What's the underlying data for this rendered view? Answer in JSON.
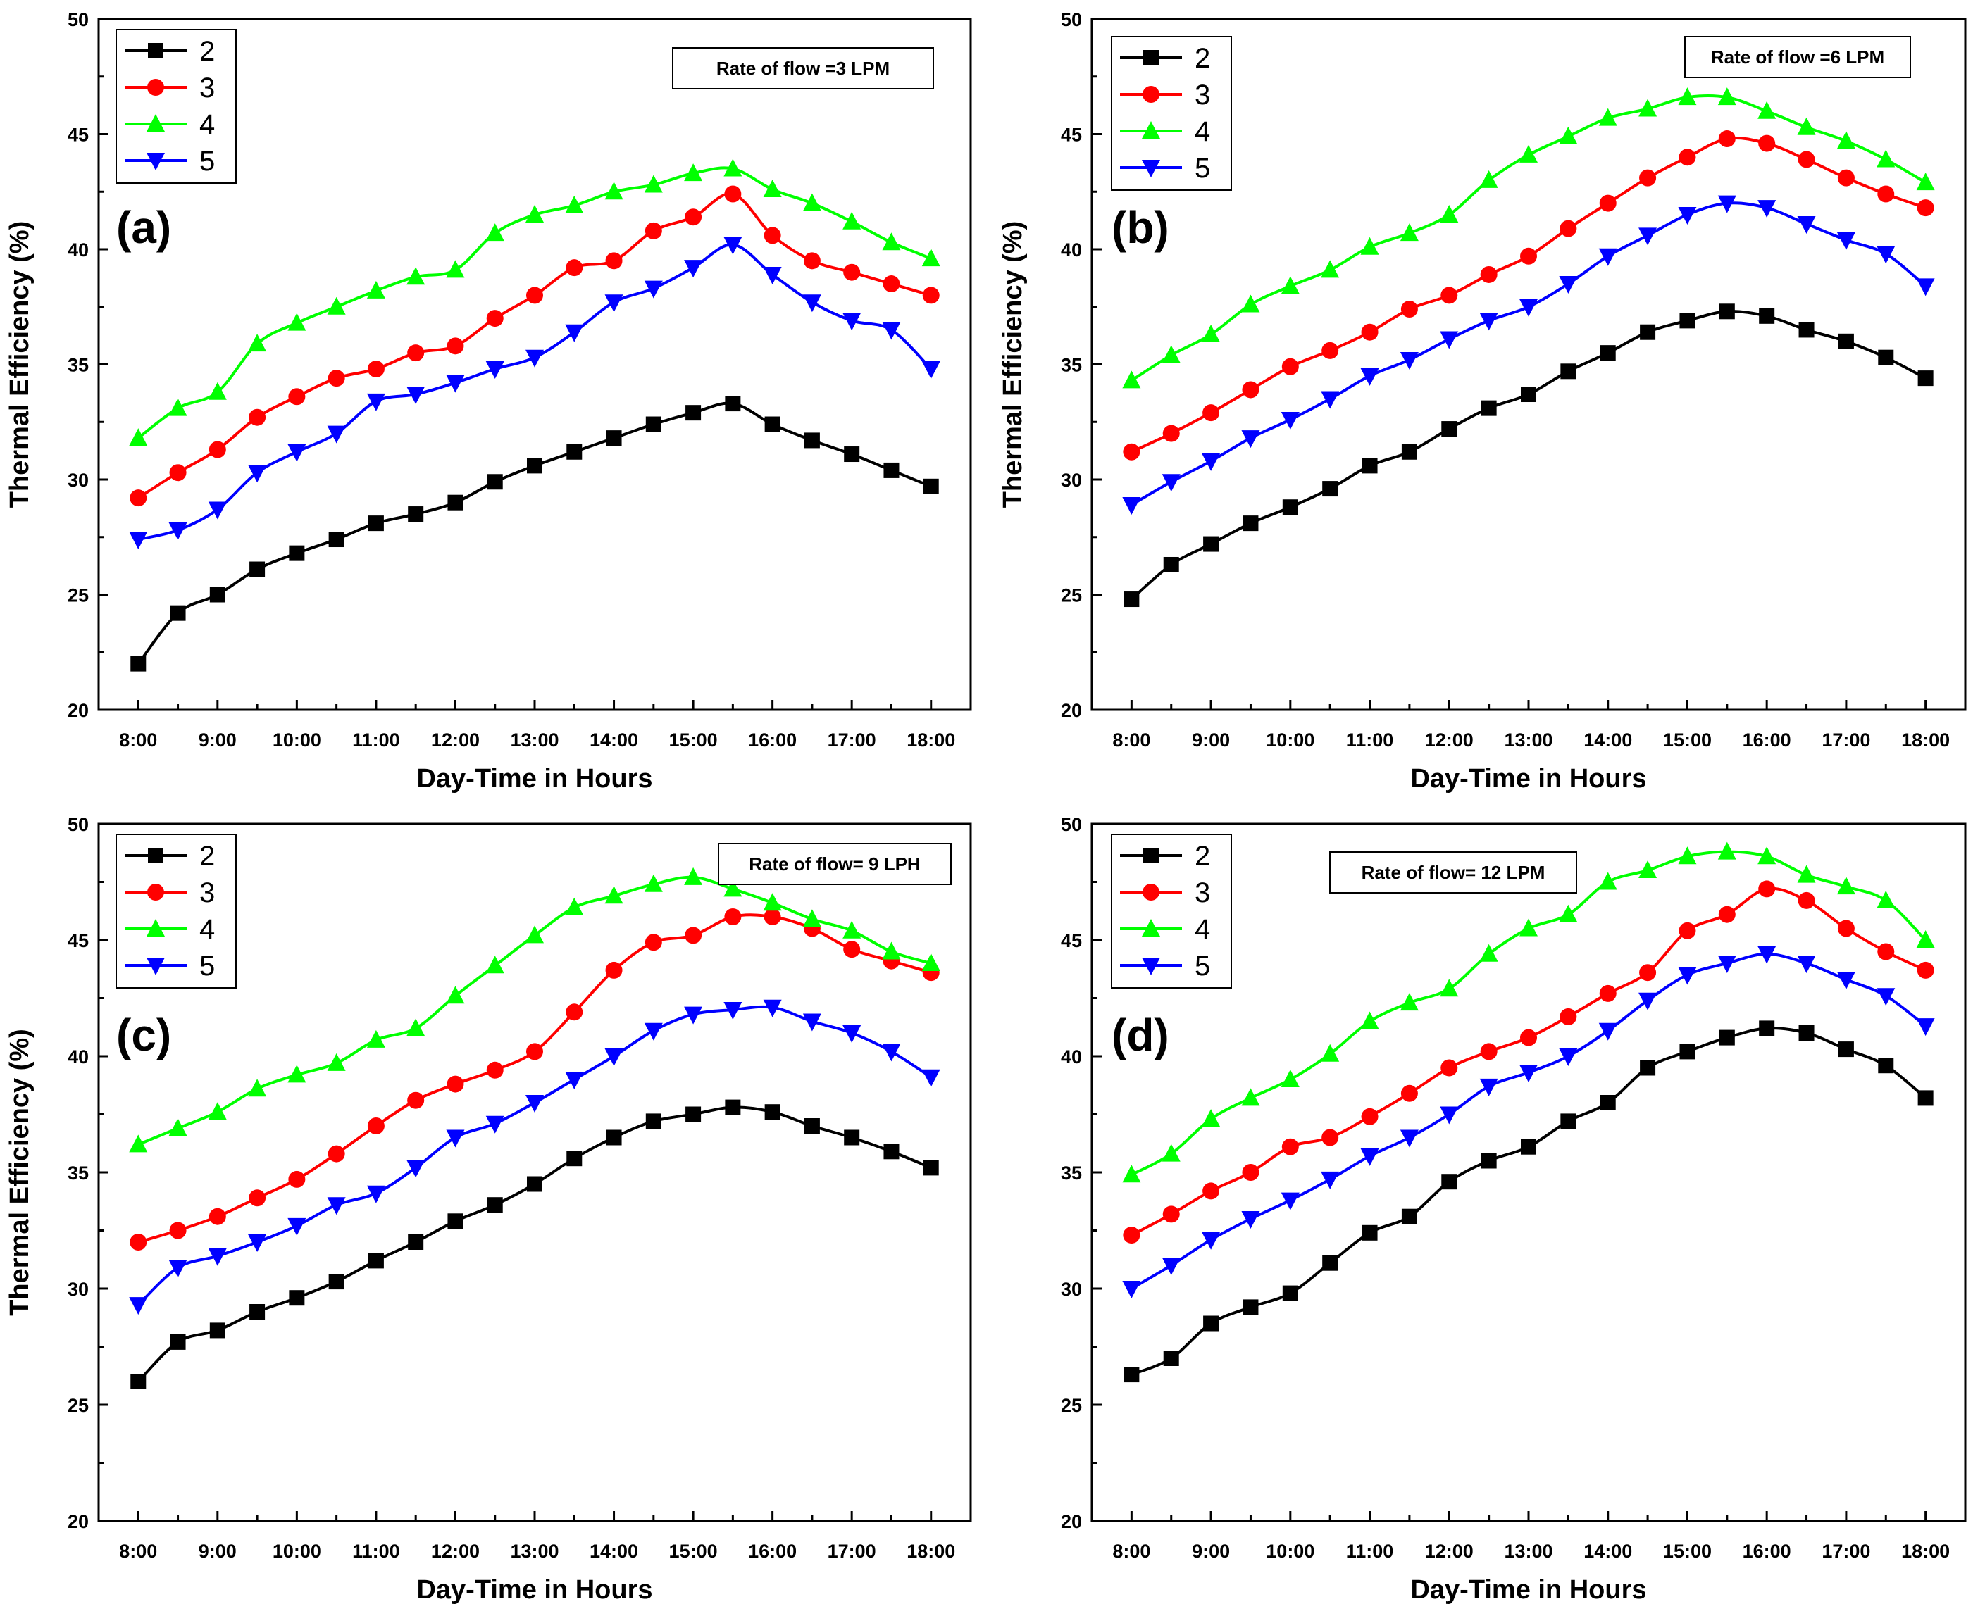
{
  "chart_data": [
    {
      "type": "line",
      "panel_label": "(a)",
      "flow_label": "Rate of flow =3 LPM",
      "xlabel": "Day-Time in Hours",
      "ylabel": "Thermal Efficiency (%)",
      "ylim": [
        20,
        50
      ],
      "yticks": [
        "20",
        "25",
        "30",
        "35",
        "40",
        "45",
        "50"
      ],
      "xtick_labels": [
        "8:00",
        "9:00",
        "10:00",
        "11:00",
        "12:00",
        "13:00",
        "14:00",
        "15:00",
        "16:00",
        "17:00",
        "18:00"
      ],
      "x": [
        8,
        8.5,
        9,
        9.5,
        10,
        10.5,
        11,
        11.5,
        12,
        12.5,
        13,
        13.5,
        14,
        14.5,
        15,
        15.5,
        16,
        16.5,
        17,
        17.5,
        18
      ],
      "legend_position": "top-left",
      "series": [
        {
          "name": "2",
          "color": "#000000",
          "marker": "square",
          "values": [
            22.0,
            24.2,
            25.0,
            26.1,
            26.8,
            27.4,
            28.1,
            28.5,
            29.0,
            29.9,
            30.6,
            31.2,
            31.8,
            32.4,
            32.9,
            33.3,
            32.4,
            31.7,
            31.1,
            30.4,
            29.7
          ]
        },
        {
          "name": "3",
          "color": "#ff0000",
          "marker": "circle",
          "values": [
            29.2,
            30.3,
            31.3,
            32.7,
            33.6,
            34.4,
            34.8,
            35.5,
            35.8,
            37.0,
            38.0,
            39.2,
            39.5,
            40.8,
            41.4,
            42.4,
            40.6,
            39.5,
            39.0,
            38.5,
            38.0
          ]
        },
        {
          "name": "4",
          "color": "#00ff00",
          "marker": "triangle-up",
          "values": [
            31.8,
            33.1,
            33.8,
            35.9,
            36.8,
            37.5,
            38.2,
            38.8,
            39.1,
            40.7,
            41.5,
            41.9,
            42.5,
            42.8,
            43.3,
            43.5,
            42.6,
            42.0,
            41.2,
            40.3,
            39.6
          ]
        },
        {
          "name": "5",
          "color": "#0000ff",
          "marker": "triangle-down",
          "values": [
            27.4,
            27.8,
            28.7,
            30.3,
            31.2,
            32.0,
            33.4,
            33.7,
            34.2,
            34.8,
            35.3,
            36.4,
            37.7,
            38.3,
            39.2,
            40.2,
            38.9,
            37.7,
            36.9,
            36.5,
            34.8
          ]
        }
      ]
    },
    {
      "type": "line",
      "panel_label": "(b)",
      "flow_label": "Rate of flow =6 LPM",
      "xlabel": "Day-Time in Hours",
      "ylabel": "Thermal Efficiency (%)",
      "ylim": [
        20,
        50
      ],
      "yticks": [
        "20",
        "25",
        "30",
        "35",
        "40",
        "45",
        "50"
      ],
      "xtick_labels": [
        "8:00",
        "9:00",
        "10:00",
        "11:00",
        "12:00",
        "13:00",
        "14:00",
        "15:00",
        "16:00",
        "17:00",
        "18:00"
      ],
      "x": [
        8,
        8.5,
        9,
        9.5,
        10,
        10.5,
        11,
        11.5,
        12,
        12.5,
        13,
        13.5,
        14,
        14.5,
        15,
        15.5,
        16,
        16.5,
        17,
        17.5,
        18
      ],
      "legend_position": "top-left",
      "series": [
        {
          "name": "2",
          "color": "#000000",
          "marker": "square",
          "values": [
            24.8,
            26.3,
            27.2,
            28.1,
            28.8,
            29.6,
            30.6,
            31.2,
            32.2,
            33.1,
            33.7,
            34.7,
            35.5,
            36.4,
            36.9,
            37.3,
            37.1,
            36.5,
            36.0,
            35.3,
            34.4
          ]
        },
        {
          "name": "3",
          "color": "#ff0000",
          "marker": "circle",
          "values": [
            31.2,
            32.0,
            32.9,
            33.9,
            34.9,
            35.6,
            36.4,
            37.4,
            38.0,
            38.9,
            39.7,
            40.9,
            42.0,
            43.1,
            44.0,
            44.8,
            44.6,
            43.9,
            43.1,
            42.4,
            41.8
          ]
        },
        {
          "name": "4",
          "color": "#00ff00",
          "marker": "triangle-up",
          "values": [
            34.3,
            35.4,
            36.3,
            37.6,
            38.4,
            39.1,
            40.1,
            40.7,
            41.5,
            43.0,
            44.1,
            44.9,
            45.7,
            46.1,
            46.6,
            46.6,
            46.0,
            45.3,
            44.7,
            43.9,
            42.9
          ]
        },
        {
          "name": "5",
          "color": "#0000ff",
          "marker": "triangle-down",
          "values": [
            28.9,
            29.9,
            30.8,
            31.8,
            32.6,
            33.5,
            34.5,
            35.2,
            36.1,
            36.9,
            37.5,
            38.5,
            39.7,
            40.6,
            41.5,
            42.0,
            41.8,
            41.1,
            40.4,
            39.8,
            38.4
          ]
        }
      ]
    },
    {
      "type": "line",
      "panel_label": "(c)",
      "flow_label": "Rate of flow= 9 LPH",
      "xlabel": "Day-Time in Hours",
      "ylabel": "Thermal Efficiency (%)",
      "ylim": [
        20,
        50
      ],
      "yticks": [
        "20",
        "25",
        "30",
        "35",
        "40",
        "45",
        "50"
      ],
      "xtick_labels": [
        "8:00",
        "9:00",
        "10:00",
        "11:00",
        "12:00",
        "13:00",
        "14:00",
        "15:00",
        "16:00",
        "17:00",
        "18:00"
      ],
      "x": [
        8,
        8.5,
        9,
        9.5,
        10,
        10.5,
        11,
        11.5,
        12,
        12.5,
        13,
        13.5,
        14,
        14.5,
        15,
        15.5,
        16,
        16.5,
        17,
        17.5,
        18
      ],
      "legend_position": "top-left",
      "series": [
        {
          "name": "2",
          "color": "#000000",
          "marker": "square",
          "values": [
            26.0,
            27.7,
            28.2,
            29.0,
            29.6,
            30.3,
            31.2,
            32.0,
            32.9,
            33.6,
            34.5,
            35.6,
            36.5,
            37.2,
            37.5,
            37.8,
            37.6,
            37.0,
            36.5,
            35.9,
            35.2
          ]
        },
        {
          "name": "3",
          "color": "#ff0000",
          "marker": "circle",
          "values": [
            32.0,
            32.5,
            33.1,
            33.9,
            34.7,
            35.8,
            37.0,
            38.1,
            38.8,
            39.4,
            40.2,
            41.9,
            43.7,
            44.9,
            45.2,
            46.0,
            46.0,
            45.5,
            44.6,
            44.1,
            43.6
          ]
        },
        {
          "name": "4",
          "color": "#00ff00",
          "marker": "triangle-up",
          "values": [
            36.2,
            36.9,
            37.6,
            38.6,
            39.2,
            39.7,
            40.7,
            41.2,
            42.6,
            43.9,
            45.2,
            46.4,
            46.9,
            47.4,
            47.7,
            47.2,
            46.6,
            45.9,
            45.4,
            44.5,
            44.0
          ]
        },
        {
          "name": "5",
          "color": "#0000ff",
          "marker": "triangle-down",
          "values": [
            29.3,
            30.9,
            31.4,
            32.0,
            32.7,
            33.6,
            34.1,
            35.2,
            36.5,
            37.1,
            38.0,
            39.0,
            40.0,
            41.1,
            41.8,
            42.0,
            42.1,
            41.5,
            41.0,
            40.2,
            39.1
          ]
        }
      ]
    },
    {
      "type": "line",
      "panel_label": "(d)",
      "flow_label": "Rate of flow= 12 LPM",
      "xlabel": "Day-Time in Hours",
      "ylabel": "",
      "ylim": [
        20,
        50
      ],
      "yticks": [
        "20",
        "25",
        "30",
        "35",
        "40",
        "45",
        "50"
      ],
      "xtick_labels": [
        "8:00",
        "9:00",
        "10:00",
        "11:00",
        "12:00",
        "13:00",
        "14:00",
        "15:00",
        "16:00",
        "17:00",
        "18:00"
      ],
      "x": [
        8,
        8.5,
        9,
        9.5,
        10,
        10.5,
        11,
        11.5,
        12,
        12.5,
        13,
        13.5,
        14,
        14.5,
        15,
        15.5,
        16,
        16.5,
        17,
        17.5,
        18
      ],
      "legend_position": "top-left",
      "series": [
        {
          "name": "2",
          "color": "#000000",
          "marker": "square",
          "values": [
            26.3,
            27.0,
            28.5,
            29.2,
            29.8,
            31.1,
            32.4,
            33.1,
            34.6,
            35.5,
            36.1,
            37.2,
            38.0,
            39.5,
            40.2,
            40.8,
            41.2,
            41.0,
            40.3,
            39.6,
            38.2
          ]
        },
        {
          "name": "3",
          "color": "#ff0000",
          "marker": "circle",
          "values": [
            32.3,
            33.2,
            34.2,
            35.0,
            36.1,
            36.5,
            37.4,
            38.4,
            39.5,
            40.2,
            40.8,
            41.7,
            42.7,
            43.6,
            45.4,
            46.1,
            47.2,
            46.7,
            45.5,
            44.5,
            43.7
          ]
        },
        {
          "name": "4",
          "color": "#00ff00",
          "marker": "triangle-up",
          "values": [
            34.9,
            35.8,
            37.3,
            38.2,
            39.0,
            40.1,
            41.5,
            42.3,
            42.9,
            44.4,
            45.5,
            46.1,
            47.5,
            48.0,
            48.6,
            48.8,
            48.6,
            47.8,
            47.3,
            46.7,
            45.0
          ]
        },
        {
          "name": "5",
          "color": "#0000ff",
          "marker": "triangle-down",
          "values": [
            30.0,
            31.0,
            32.1,
            33.0,
            33.8,
            34.7,
            35.7,
            36.5,
            37.5,
            38.7,
            39.3,
            40.0,
            41.1,
            42.4,
            43.5,
            44.0,
            44.4,
            44.0,
            43.3,
            42.6,
            41.3
          ]
        }
      ]
    }
  ]
}
